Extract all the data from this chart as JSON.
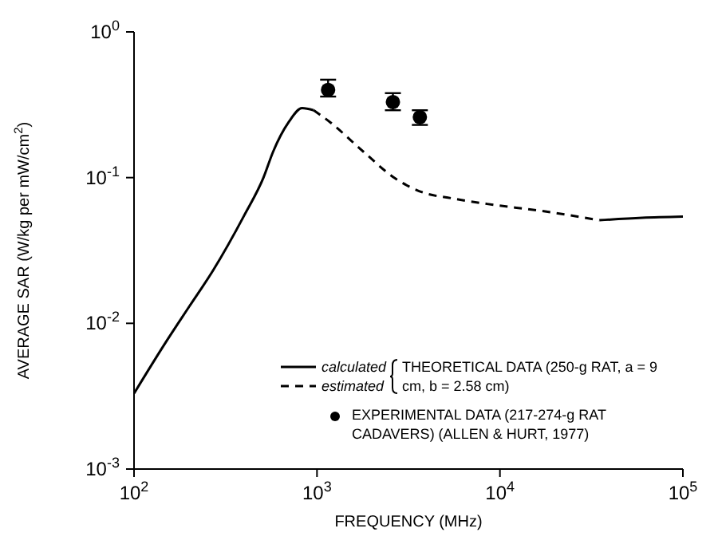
{
  "chart_data": {
    "type": "line",
    "xlabel": "FREQUENCY (MHz)",
    "ylabel": "AVERAGE SAR (W/kg per mW/cm$^{2}$)",
    "log": "xy",
    "grid": false,
    "legend": "bottom right",
    "marker": "none",
    "xlim": [
      100,
      100000
    ],
    "xticks": [
      {
        "value": 100,
        "label": "10$^{2}$"
      },
      {
        "value": 1000,
        "label": "10$^{3}$"
      },
      {
        "value": 10000,
        "label": "10$^{4}$"
      },
      {
        "value": 100000,
        "label": "10$^{5}$"
      }
    ],
    "ylim": [
      0.001,
      1
    ],
    "yticks": [
      {
        "value": 0.001,
        "label": "10$^{-3}$"
      },
      {
        "value": 0.01,
        "label": "10$^{-2}$"
      },
      {
        "value": 0.1,
        "label": "10$^{-1}$"
      },
      {
        "value": 1,
        "label": "10$^{0}$"
      }
    ],
    "annotations": [
      "THEORETICAL DATA (250-g RAT, a = 9 cm, b = 2.58 cm)"
    ],
    "series": [
      {
        "name": "calculated",
        "color": "#000000",
        "line_style": "solid",
        "x": [
          100,
          150,
          200,
          270,
          400,
          510,
          575,
          700,
          830,
          960,
          2000,
          35000,
          60000,
          100000
        ],
        "values": [
          0.0033,
          0.0075,
          0.013,
          0.023,
          0.055,
          0.1,
          0.15,
          0.24,
          0.3,
          0.29,
          null,
          0.051,
          0.053,
          0.054
        ]
      },
      {
        "name": "estimated",
        "color": "#000000",
        "line_style": "dashed",
        "x": [
          960,
          1180,
          1800,
          2640,
          3800,
          5500,
          8500,
          17000,
          35000
        ],
        "values": [
          0.29,
          0.24,
          0.15,
          0.1,
          0.079,
          0.072,
          0.066,
          0.059,
          0.051
        ]
      },
      {
        "name": "EXPERIMENTAL DATA (217-274-g RAT CADAVERS) (ALLEN & HURT, 1977)",
        "type": "scatter",
        "marker": "circle",
        "color": "#000000",
        "x": [
          1150,
          2600,
          3650
        ],
        "values": [
          0.4,
          0.33,
          0.26
        ],
        "errors": [
          [
            0.36,
            0.47
          ],
          [
            0.29,
            0.38
          ],
          [
            0.23,
            0.29
          ]
        ]
      }
    ]
  }
}
